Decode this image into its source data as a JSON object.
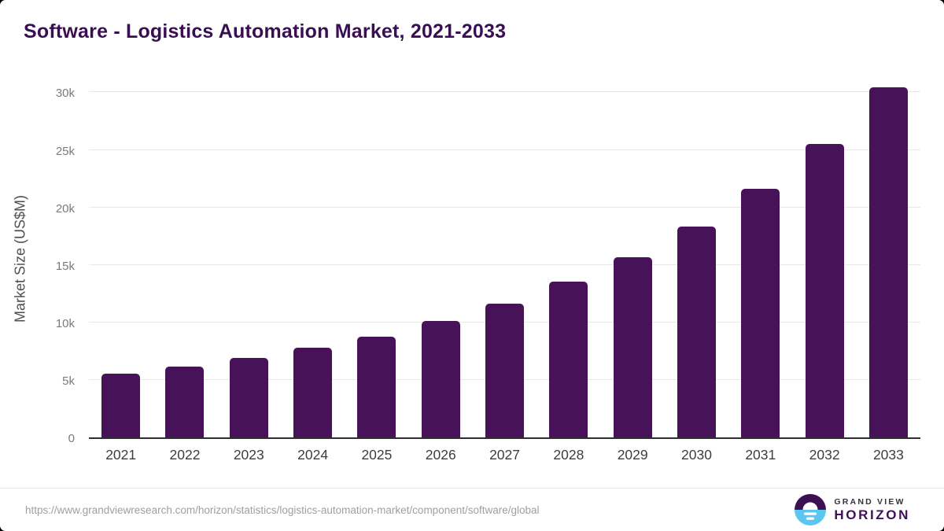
{
  "title": "Software - Logistics Automation Market, 2021-2033",
  "chart_data": {
    "type": "bar",
    "title": "Software - Logistics Automation Market, 2021-2033",
    "categories": [
      "2021",
      "2022",
      "2023",
      "2024",
      "2025",
      "2026",
      "2027",
      "2028",
      "2029",
      "2030",
      "2031",
      "2032",
      "2033"
    ],
    "values": [
      5540,
      6160,
      6940,
      7810,
      8780,
      10150,
      11660,
      13510,
      15670,
      18300,
      21600,
      25530,
      30470
    ],
    "xlabel": "",
    "ylabel": "Market Size (US$M)",
    "ylim": [
      0,
      31330
    ],
    "yticks": [
      {
        "value": 0,
        "label": "0"
      },
      {
        "value": 5000,
        "label": "5k"
      },
      {
        "value": 10000,
        "label": "10k"
      },
      {
        "value": 15000,
        "label": "15k"
      },
      {
        "value": 20000,
        "label": "20k"
      },
      {
        "value": 25000,
        "label": "25k"
      },
      {
        "value": 30000,
        "label": "30k"
      }
    ],
    "grid": "horizontal",
    "legend": "none",
    "bar_color": "#481259",
    "units": "US$M"
  },
  "footer": {
    "source_url": "https://www.grandviewresearch.com/horizon/statistics/logistics-automation-market/component/software/global",
    "logo": {
      "line1": "GRAND VIEW",
      "line2": "HORIZON",
      "icon": "horizon-sun-circle-icon"
    }
  },
  "colors": {
    "title": "#3a0e52",
    "bar": "#481259",
    "gridline": "#e8e8e8",
    "axis_line": "#2e2e2e",
    "y_tick_text": "#7a7a7a",
    "x_tick_text": "#3d3d3d",
    "source_text": "#9f9f9f",
    "logo_blue": "#5bc6f0",
    "logo_purple": "#3b1153",
    "window_background": "#000000"
  }
}
